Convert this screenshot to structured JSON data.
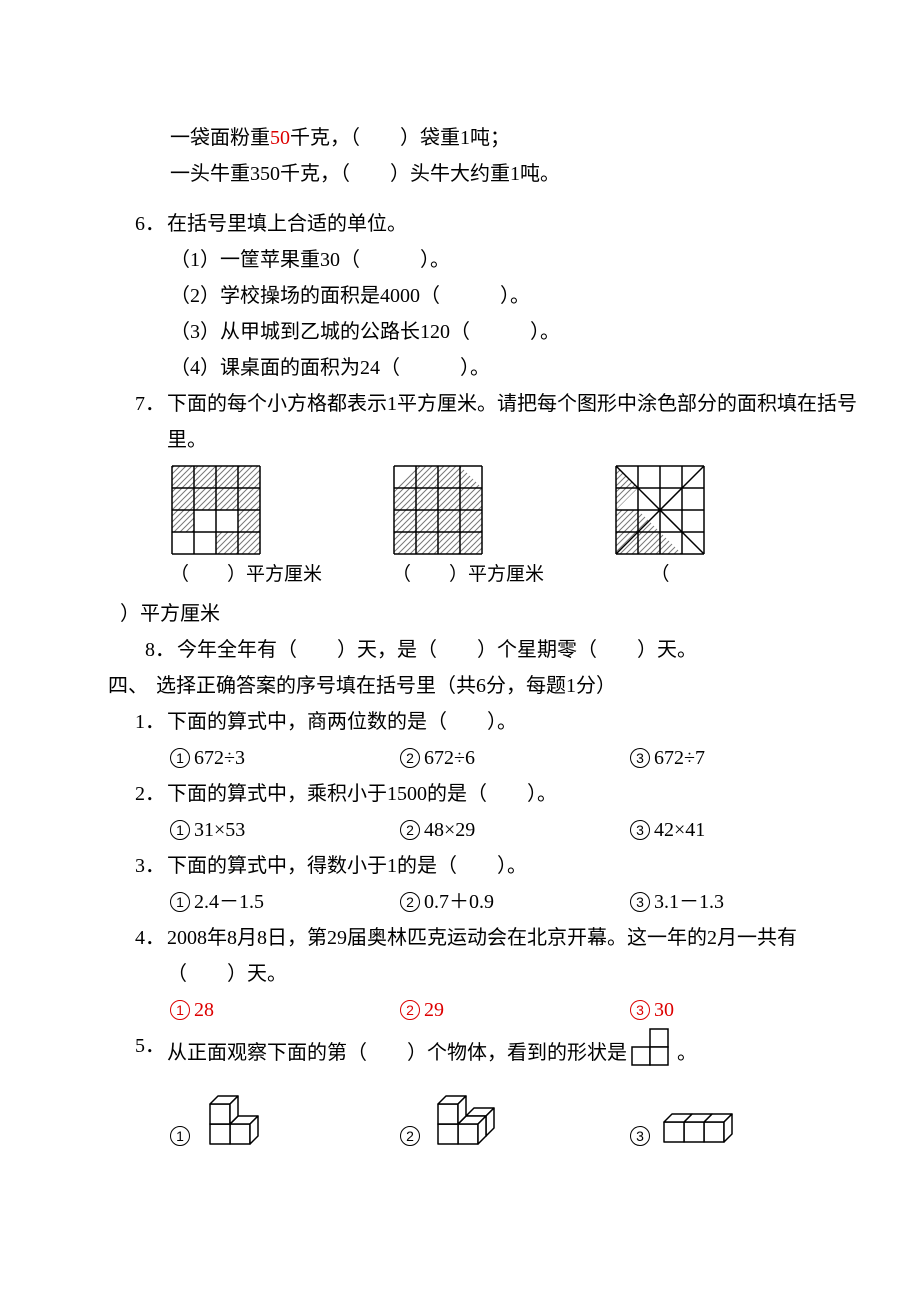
{
  "top": {
    "line1_a": "一袋面粉重",
    "line1_b": "50",
    "line1_c": "千克，（　　）袋重1吨；",
    "line2": "一头牛重350千克，（　　）头牛大约重1吨。"
  },
  "q6": {
    "num": "6．",
    "stem": "在括号里填上合适的单位。",
    "s1": "（1）一筐苹果重30（　　　）。",
    "s2": "（2）学校操场的面积是4000（　　　）。",
    "s3": "（3）从甲城到乙城的公路长120（　　　）。",
    "s4": "（4）课桌面的面积为24（　　　）。"
  },
  "q7": {
    "num": "7．",
    "stem": "下面的每个小方格都表示1平方厘米。请把每个图形中涂色部分的面积填在括号里。",
    "cap1": "（　　）平方厘米",
    "cap2": "（　　）平方厘米",
    "cap3_a": "（",
    "cap3_b": "）平方厘米",
    "grid": {
      "cell": 22,
      "cols": 4,
      "rows": 4,
      "stroke": "#000000",
      "hatch_stroke": "#777777",
      "g1_shaded": [
        [
          0,
          0
        ],
        [
          1,
          0
        ],
        [
          2,
          0
        ],
        [
          3,
          0
        ],
        [
          0,
          1
        ],
        [
          1,
          1
        ],
        [
          2,
          1
        ],
        [
          3,
          1
        ],
        [
          0,
          2
        ],
        [
          3,
          2
        ],
        [
          2,
          3
        ],
        [
          3,
          3
        ]
      ],
      "g2_full": [
        [
          1,
          0
        ],
        [
          2,
          0
        ],
        [
          0,
          1
        ],
        [
          1,
          1
        ],
        [
          2,
          1
        ],
        [
          3,
          1
        ],
        [
          0,
          2
        ],
        [
          1,
          2
        ],
        [
          2,
          2
        ],
        [
          3,
          2
        ],
        [
          0,
          3
        ],
        [
          1,
          3
        ],
        [
          2,
          3
        ],
        [
          3,
          3
        ]
      ],
      "g2_tri": [
        {
          "c": 0,
          "r": 0,
          "pts": "br"
        },
        {
          "c": 3,
          "r": 0,
          "pts": "bl"
        }
      ],
      "g3_full": [
        [
          0,
          2
        ],
        [
          0,
          3
        ],
        [
          1,
          3
        ]
      ],
      "g3_tri": [
        {
          "c": 0,
          "r": 0,
          "pts": "bl"
        },
        {
          "c": 0,
          "r": 1,
          "pts": "tl"
        },
        {
          "c": 1,
          "r": 2,
          "pts": "bl"
        },
        {
          "c": 2,
          "r": 3,
          "pts": "bl"
        }
      ],
      "g3_diag": true
    }
  },
  "q8": {
    "num": "8．",
    "text": "今年全年有（　　）天，是（　　）个星期零（　　）天。"
  },
  "section4": {
    "label": "四、",
    "text": "选择正确答案的序号填在括号里（共6分，每题1分）"
  },
  "s4q1": {
    "num": "1．",
    "stem": "下面的算式中，商两位数的是（　　）。",
    "o1": "672÷3",
    "o2": "672÷6",
    "o3": "672÷7"
  },
  "s4q2": {
    "num": "2．",
    "stem": "下面的算式中，乘积小于1500的是（　　）。",
    "o1": "31×53",
    "o2": "48×29",
    "o3": "42×41"
  },
  "s4q3": {
    "num": "3．",
    "stem": "下面的算式中，得数小于1的是（　　）。",
    "o1": "2.4－1.5",
    "o2": "0.7＋0.9",
    "o3": "3.1－1.3"
  },
  "s4q4": {
    "num": "4．",
    "stem": "2008年8月8日，第29届奥林匹克运动会在北京开幕。这一年的2月一共有（　　）天。",
    "o1": "28",
    "o2": "29",
    "o3": "30",
    "red": true
  },
  "s4q5": {
    "num": "5．",
    "stem_a": "从正面观察下面的第（　　）个物体，看到的形状是",
    "stem_b": "。",
    "n1": "1",
    "n2": "2",
    "n3": "3"
  },
  "circled": {
    "n1": "1",
    "n2": "2",
    "n3": "3"
  }
}
